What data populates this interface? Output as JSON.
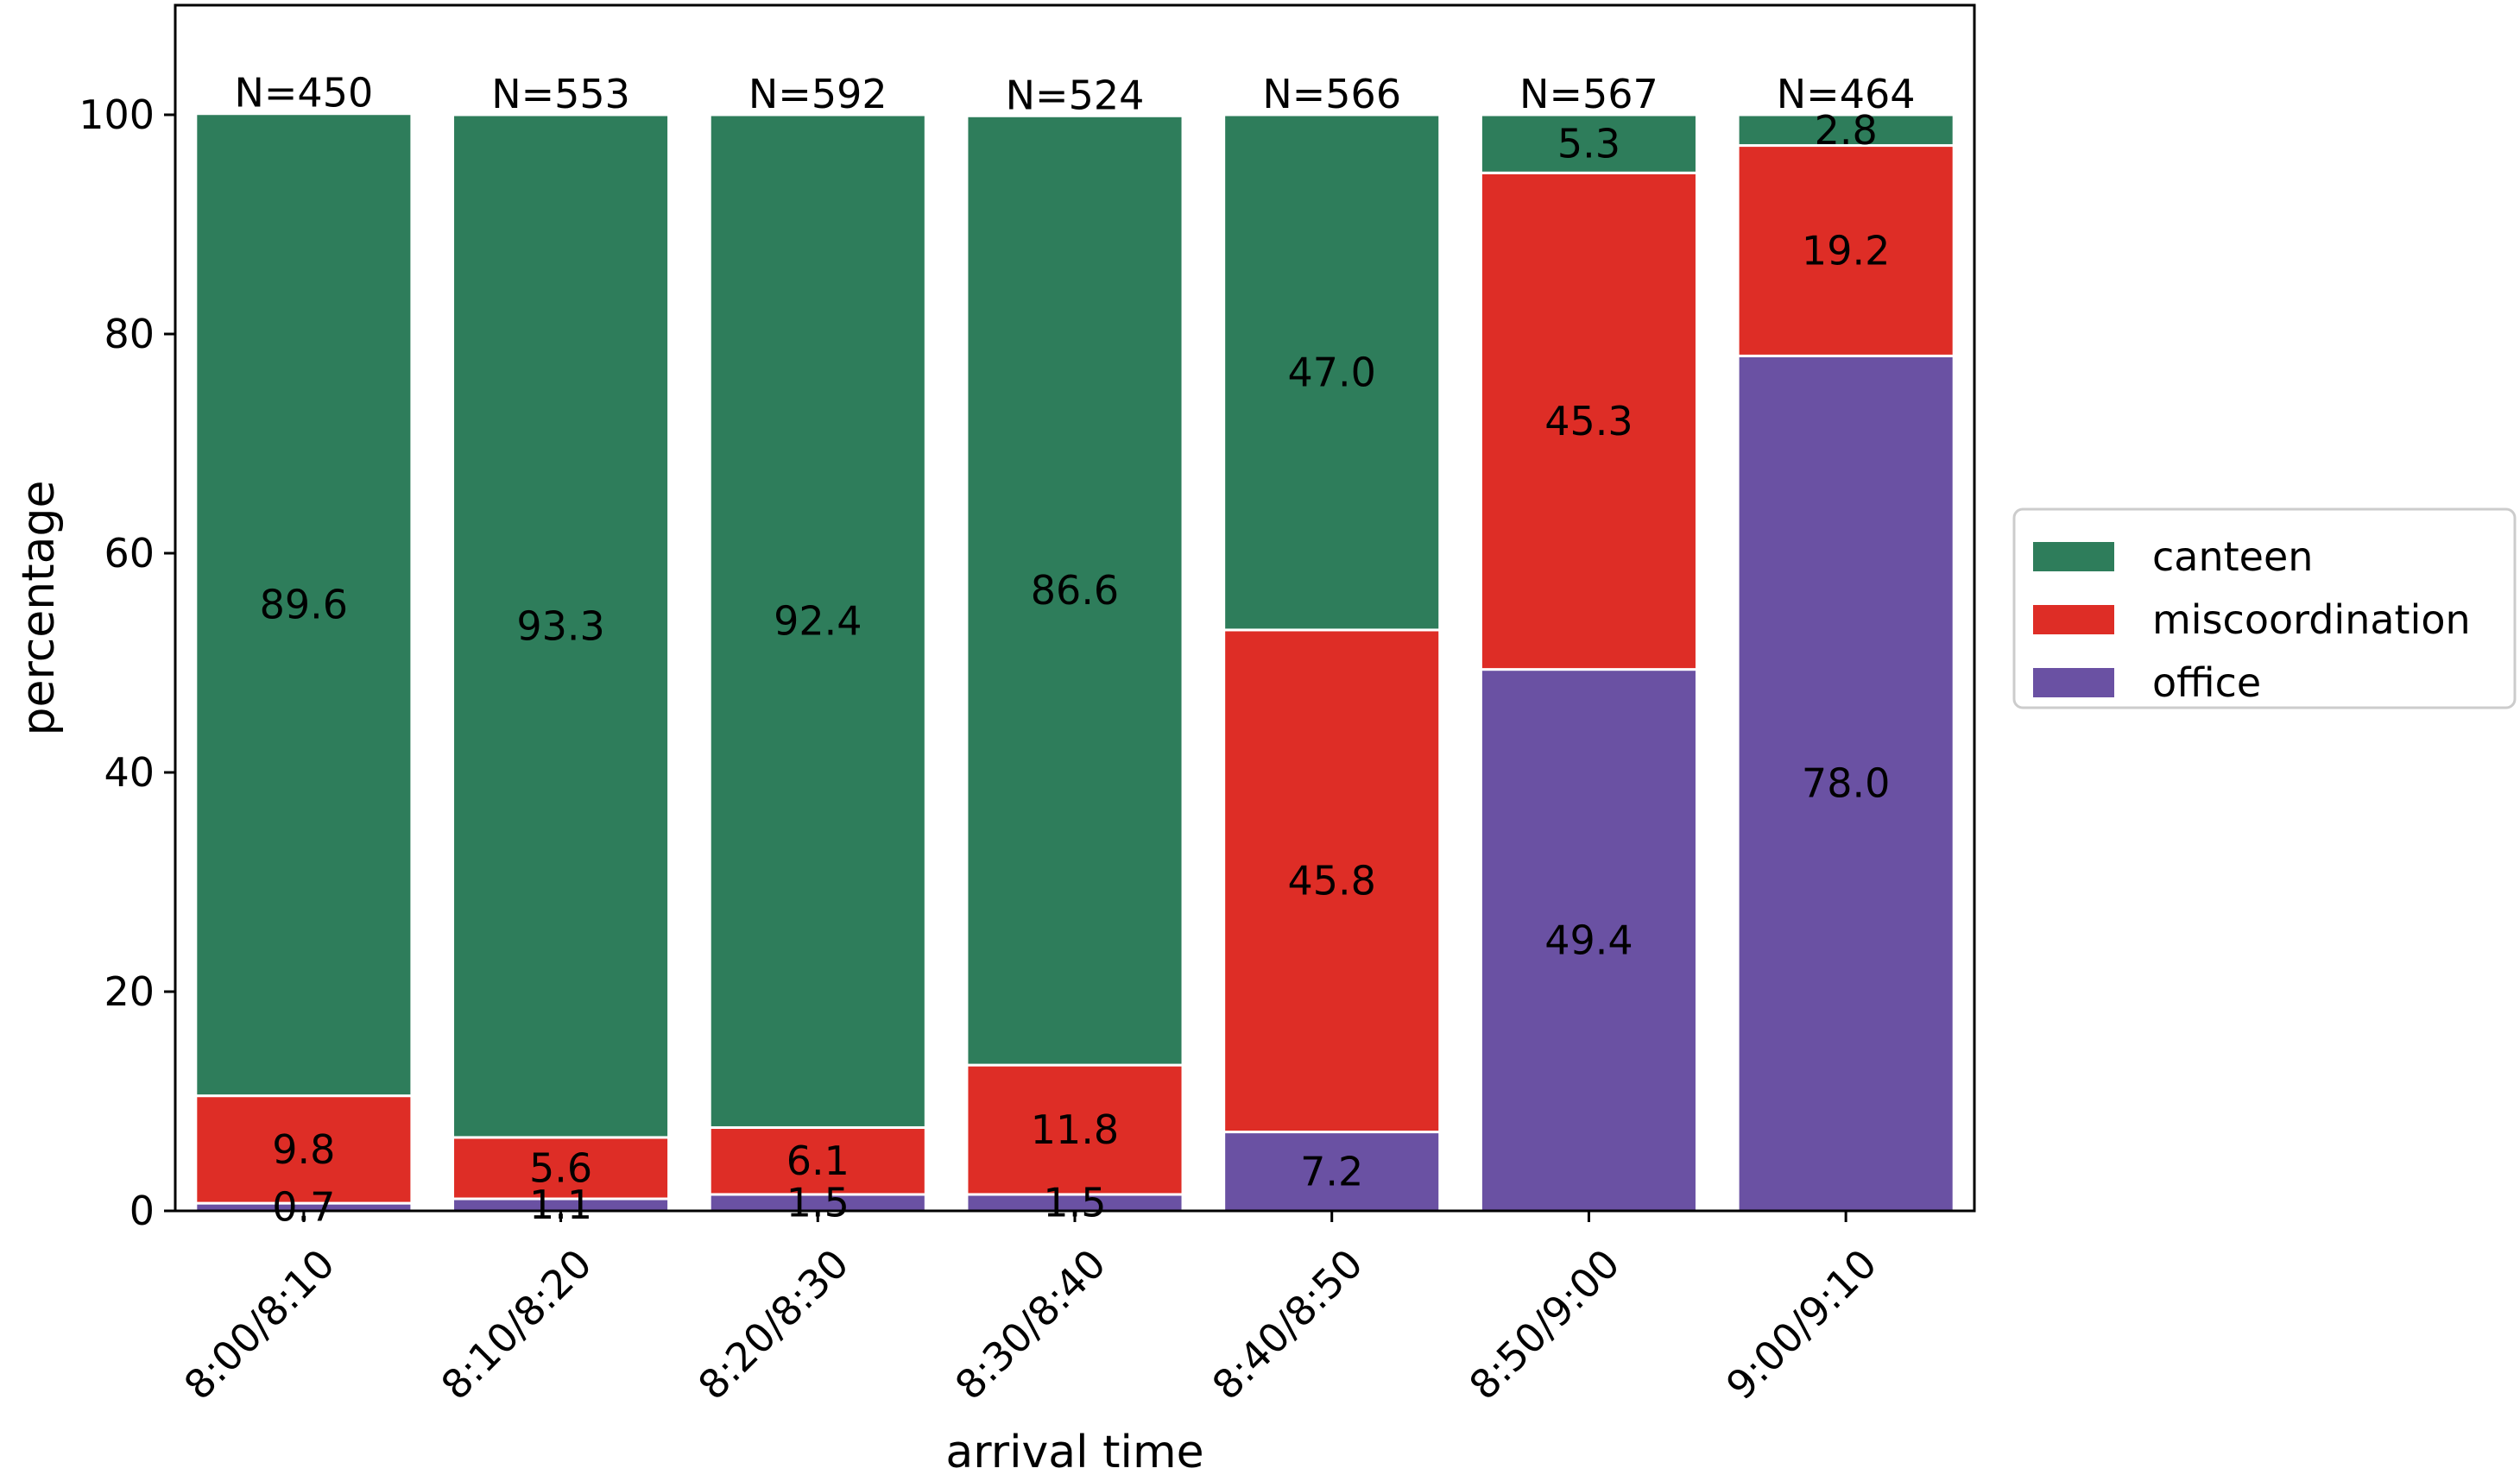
{
  "chart_data": {
    "type": "bar",
    "stacked": true,
    "title": "",
    "xlabel": "arrival time",
    "ylabel": "percentage",
    "ylim": [
      0,
      110
    ],
    "yticks": [
      0,
      20,
      40,
      60,
      80,
      100
    ],
    "ytick_labels": [
      "0",
      "20",
      "40",
      "60",
      "80",
      "100"
    ],
    "grid": false,
    "legend_position": "outside-right",
    "categories": [
      "8:00/8:10",
      "8:10/8:20",
      "8:20/8:30",
      "8:30/8:40",
      "8:40/8:50",
      "8:50/9:00",
      "9:00/9:10"
    ],
    "totals": [
      "N=450",
      "N=553",
      "N=592",
      "N=524",
      "N=566",
      "N=567",
      "N=464"
    ],
    "series": [
      {
        "name": "office",
        "color": "#6a51a3",
        "values": [
          0.7,
          1.1,
          1.5,
          1.5,
          7.2,
          49.4,
          78.0
        ],
        "labels": [
          "0.7",
          "1.1",
          "1.5",
          "1.5",
          "7.2",
          "49.4",
          "78.0"
        ]
      },
      {
        "name": "miscoordination",
        "color": "#de2d26",
        "values": [
          9.8,
          5.6,
          6.1,
          11.8,
          45.8,
          45.3,
          19.2
        ],
        "labels": [
          "9.8",
          "5.6",
          "6.1",
          "11.8",
          "45.8",
          "45.3",
          "19.2"
        ]
      },
      {
        "name": "canteen",
        "color": "#2e7d5b",
        "values": [
          89.6,
          93.3,
          92.4,
          86.6,
          47.0,
          5.3,
          2.8
        ],
        "labels": [
          "89.6",
          "93.3",
          "92.4",
          "86.6",
          "47.0",
          "5.3",
          "2.8"
        ]
      }
    ],
    "legend_order": [
      "canteen",
      "miscoordination",
      "office"
    ]
  }
}
